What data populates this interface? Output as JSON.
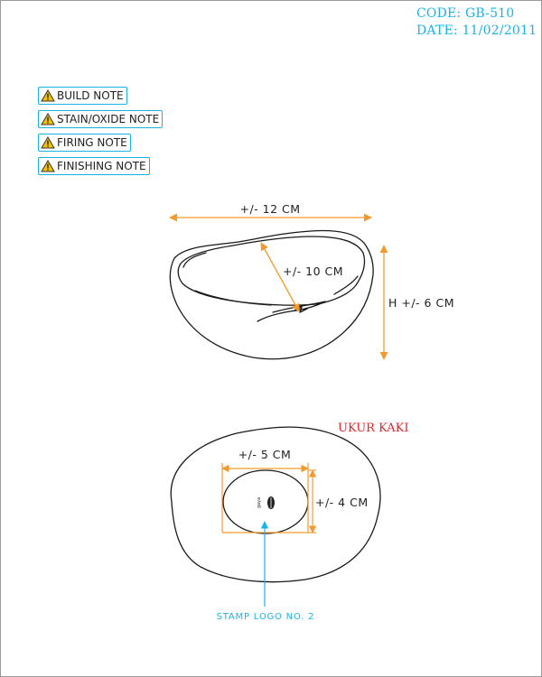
{
  "header": {
    "code": "CODE: GB-510",
    "date": "DATE: 11/02/2011"
  },
  "notes": [
    {
      "label": "BUILD NOTE",
      "icon": "warning-icon"
    },
    {
      "label": "STAIN/OXIDE NOTE",
      "icon": "warning-icon"
    },
    {
      "label": "FIRING NOTE",
      "icon": "warning-icon"
    },
    {
      "label": "FINISHING NOTE",
      "icon": "warning-icon"
    }
  ],
  "side_view": {
    "width_label": "+/- 12 CM",
    "inner_label": "+/- 10 CM",
    "height_label": "H +/- 6 CM"
  },
  "bottom_view": {
    "title": "UKUR KAKI",
    "foot_width_label": "+/- 5 CM",
    "foot_height_label": "+/- 4 CM",
    "stamp_text": "gaya",
    "stamp_label": "STAMP LOGO NO. 2"
  },
  "colors": {
    "dimension": "#f39a2e",
    "accent": "#1bb3e6",
    "title_red": "#e0242a",
    "outline": "#1a1a1a"
  }
}
